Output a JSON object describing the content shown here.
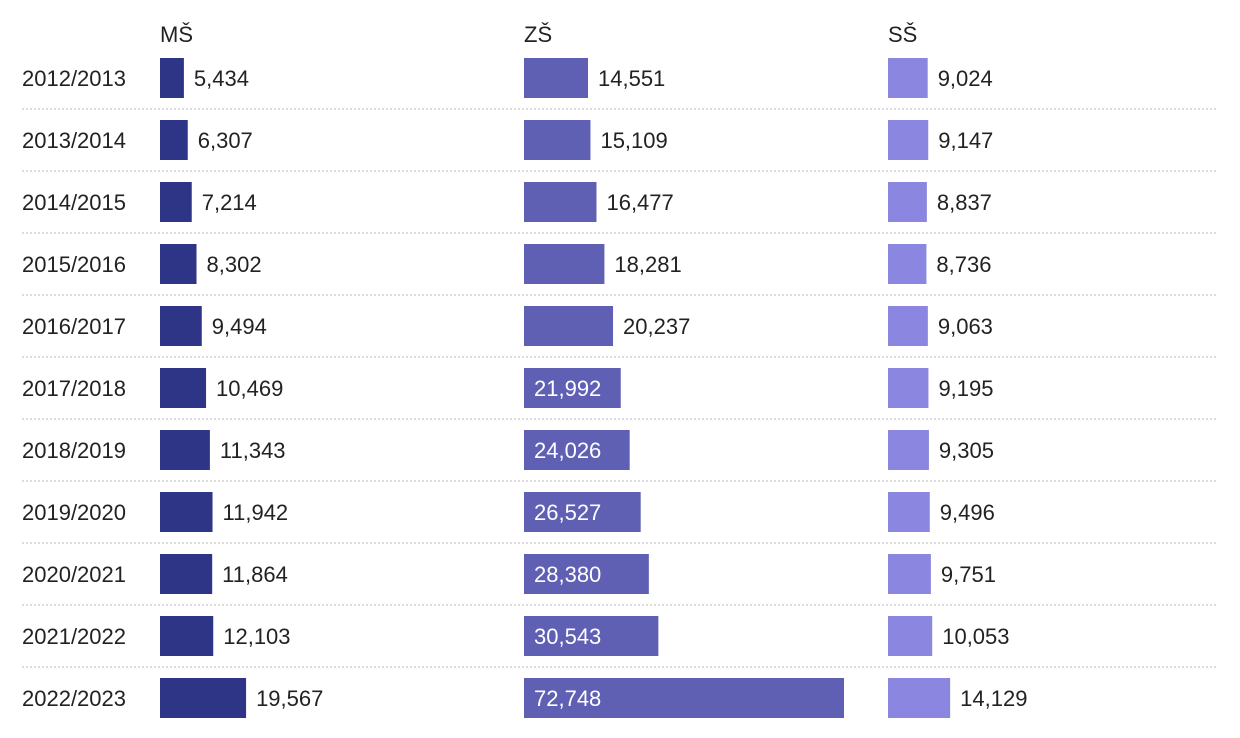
{
  "chart_data": {
    "type": "bar",
    "orientation": "horizontal",
    "layout": "small-multiples",
    "categories": [
      "2012/2013",
      "2013/2014",
      "2014/2015",
      "2015/2016",
      "2016/2017",
      "2017/2018",
      "2018/2019",
      "2019/2020",
      "2020/2021",
      "2021/2022",
      "2022/2023"
    ],
    "series": [
      {
        "name": "MŠ",
        "color": "#2e3586",
        "values": [
          5434,
          6307,
          7214,
          8302,
          9494,
          10469,
          11343,
          11942,
          11864,
          12103,
          19567
        ],
        "labels": [
          "5,434",
          "6,307",
          "7,214",
          "8,302",
          "9,494",
          "10,469",
          "11,343",
          "11,942",
          "11,864",
          "12,103",
          "19,567"
        ]
      },
      {
        "name": "ZŠ",
        "color": "#5f5fb4",
        "values": [
          14551,
          15109,
          16477,
          18281,
          20237,
          21992,
          24026,
          26527,
          28380,
          30543,
          72748
        ],
        "labels": [
          "14,551",
          "15,109",
          "16,477",
          "18,281",
          "20,237",
          "21,992",
          "24,026",
          "26,527",
          "28,380",
          "30,543",
          "72,748"
        ]
      },
      {
        "name": "SŠ",
        "color": "#8b87e0",
        "values": [
          9024,
          9147,
          8837,
          8736,
          9063,
          9195,
          9305,
          9496,
          9751,
          10053,
          14129
        ],
        "labels": [
          "9,024",
          "9,147",
          "8,837",
          "8,736",
          "9,063",
          "9,195",
          "9,305",
          "9,496",
          "9,751",
          "10,053",
          "14,129"
        ]
      }
    ],
    "xlim": [
      0,
      72748
    ],
    "grid": false,
    "row_separators": "dotted",
    "value_labels": true
  }
}
